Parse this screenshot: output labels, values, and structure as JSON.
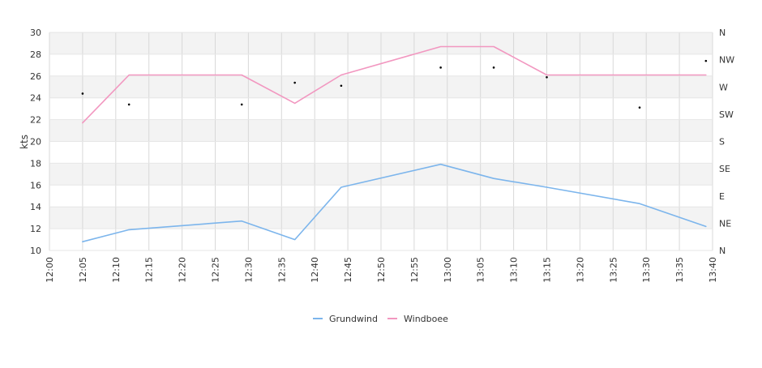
{
  "chart_data": {
    "type": "line",
    "ylabel": "kts",
    "ylim": [
      10,
      30
    ],
    "y_ticks": [
      "10",
      "12",
      "14",
      "16",
      "18",
      "20",
      "22",
      "24",
      "26",
      "28",
      "30"
    ],
    "y2_ticks": [
      "N",
      "NE",
      "E",
      "SE",
      "S",
      "SW",
      "W",
      "NW",
      "N"
    ],
    "x_ticks": [
      "12:00",
      "12:05",
      "12:10",
      "12:15",
      "12:20",
      "12:25",
      "12:30",
      "12:35",
      "12:40",
      "12:45",
      "12:50",
      "12:55",
      "13:00",
      "13:05",
      "13:10",
      "13:15",
      "13:20",
      "13:25",
      "13:30",
      "13:35",
      "13:40"
    ],
    "grid": true,
    "legend_position": "bottom-center",
    "series": [
      {
        "name": "Grundwind",
        "color": "#7cb5ec",
        "points": [
          {
            "x": "12:05",
            "y": 10.8
          },
          {
            "x": "12:12",
            "y": 11.9
          },
          {
            "x": "12:29",
            "y": 12.7
          },
          {
            "x": "12:37",
            "y": 11.0
          },
          {
            "x": "12:44",
            "y": 15.8
          },
          {
            "x": "12:59",
            "y": 17.9
          },
          {
            "x": "13:07",
            "y": 16.6
          },
          {
            "x": "13:15",
            "y": 15.8
          },
          {
            "x": "13:29",
            "y": 14.3
          },
          {
            "x": "13:39",
            "y": 12.2
          }
        ]
      },
      {
        "name": "Windboee",
        "color": "#f297c0",
        "points": [
          {
            "x": "12:05",
            "y": 21.7
          },
          {
            "x": "12:12",
            "y": 26.1
          },
          {
            "x": "12:29",
            "y": 26.1
          },
          {
            "x": "12:37",
            "y": 23.5
          },
          {
            "x": "12:44",
            "y": 26.1
          },
          {
            "x": "12:59",
            "y": 28.7
          },
          {
            "x": "13:07",
            "y": 28.7
          },
          {
            "x": "13:15",
            "y": 26.1
          },
          {
            "x": "13:29",
            "y": 26.1
          },
          {
            "x": "13:39",
            "y": 26.1
          }
        ]
      }
    ],
    "direction_points": [
      {
        "x": "12:05",
        "direction_deg": 259
      },
      {
        "x": "12:12",
        "direction_deg": 241
      },
      {
        "x": "12:29",
        "direction_deg": 241
      },
      {
        "x": "12:37",
        "direction_deg": 277
      },
      {
        "x": "12:44",
        "direction_deg": 272
      },
      {
        "x": "12:59",
        "direction_deg": 302
      },
      {
        "x": "13:07",
        "direction_deg": 302
      },
      {
        "x": "13:15",
        "direction_deg": 286
      },
      {
        "x": "13:29",
        "direction_deg": 236
      },
      {
        "x": "13:39",
        "direction_deg": 313
      }
    ],
    "direction_color": "#000000"
  }
}
